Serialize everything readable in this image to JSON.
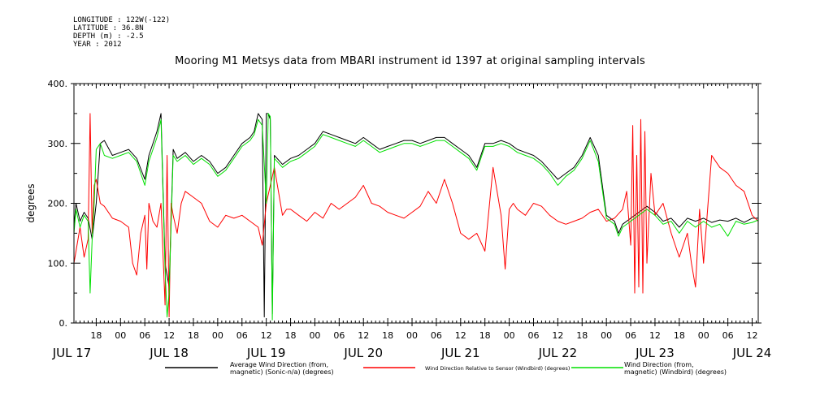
{
  "meta": {
    "longitude": "LONGITUDE : 122W(-122)",
    "latitude": "LATITUDE : 36.8N",
    "depth": "DEPTH (m) : -2.5",
    "year": "YEAR : 2012"
  },
  "chart_data": {
    "type": "line",
    "title": "Mooring M1 Metsys data from MBARI instrument id 1397 at original sampling intervals",
    "ylabel": "degrees",
    "xlabel": "",
    "ylim": [
      0,
      400
    ],
    "y_ticks": [
      0,
      100,
      200,
      300,
      400
    ],
    "y_tick_labels": [
      "0.",
      "100.",
      "200.",
      "300.",
      "400."
    ],
    "x_unit": "hours since JUL 17 00:00, 2012",
    "xlim": [
      12.5,
      181.5
    ],
    "hour_ticks": [
      18,
      24,
      30,
      36,
      42,
      48,
      54,
      60,
      66,
      72,
      78,
      84,
      90,
      96,
      102,
      108,
      114,
      120,
      126,
      132,
      138,
      144,
      150,
      156,
      162,
      168,
      174,
      180
    ],
    "hour_tick_labels": [
      "18",
      "00",
      "06",
      "12",
      "18",
      "00",
      "06",
      "12",
      "18",
      "00",
      "06",
      "12",
      "18",
      "00",
      "06",
      "12",
      "18",
      "00",
      "06",
      "12",
      "18",
      "00",
      "06",
      "12",
      "18",
      "00",
      "06",
      "12"
    ],
    "day_labels": [
      {
        "label": "JUL 17",
        "hour": 12
      },
      {
        "label": "JUL 18",
        "hour": 36
      },
      {
        "label": "JUL 19",
        "hour": 60
      },
      {
        "label": "JUL 20",
        "hour": 84
      },
      {
        "label": "JUL 21",
        "hour": 108
      },
      {
        "label": "JUL 22",
        "hour": 132
      },
      {
        "label": "JUL 23",
        "hour": 156
      },
      {
        "label": "JUL 24",
        "hour": 180
      }
    ],
    "legend_position": "bottom",
    "series": [
      {
        "name": "Average Wind Direction (from, magnetic) (Sonic-n/a) (degrees)",
        "name_lines": [
          "Average Wind Direction (from,",
          "magnetic) (Sonic-n/a) (degrees)"
        ],
        "color": "#000000",
        "x": [
          12.5,
          13,
          14,
          15,
          16,
          17,
          18,
          19,
          20,
          22,
          24,
          26,
          28,
          30,
          31,
          32,
          33,
          34,
          35,
          36,
          37,
          38,
          40,
          42,
          44,
          46,
          48,
          50,
          52,
          54,
          56,
          57,
          58,
          59,
          59.5,
          60,
          60.5,
          61,
          61.5,
          62,
          64,
          66,
          68,
          70,
          72,
          74,
          76,
          78,
          80,
          82,
          84,
          86,
          88,
          90,
          92,
          94,
          96,
          98,
          100,
          102,
          104,
          106,
          108,
          110,
          112,
          114,
          116,
          118,
          120,
          122,
          124,
          126,
          128,
          130,
          132,
          134,
          136,
          138,
          140,
          142,
          144,
          146,
          147,
          148,
          150,
          152,
          154,
          156,
          158,
          160,
          162,
          164,
          166,
          168,
          170,
          172,
          174,
          176,
          178,
          180,
          181.5
        ],
        "y": [
          160,
          200,
          170,
          185,
          175,
          140,
          200,
          300,
          305,
          280,
          285,
          290,
          275,
          240,
          280,
          300,
          320,
          350,
          100,
          60,
          290,
          275,
          285,
          270,
          280,
          270,
          250,
          260,
          280,
          300,
          310,
          320,
          350,
          340,
          10,
          350,
          350,
          340,
          15,
          280,
          265,
          275,
          280,
          290,
          300,
          320,
          315,
          310,
          305,
          300,
          310,
          300,
          290,
          295,
          300,
          305,
          305,
          300,
          305,
          310,
          310,
          300,
          290,
          280,
          260,
          300,
          300,
          305,
          300,
          290,
          285,
          280,
          270,
          255,
          240,
          250,
          260,
          280,
          310,
          280,
          180,
          170,
          150,
          165,
          175,
          185,
          195,
          185,
          170,
          175,
          160,
          175,
          170,
          175,
          168,
          172,
          170,
          175,
          168,
          175,
          175
        ]
      },
      {
        "name": "Wind Direction Relative to Sensor (Windbird) (degrees)",
        "name_lines": [
          "Wind Direction Relative to Sensor (Windbird) (degrees)"
        ],
        "color": "#ff0000",
        "x": [
          12.5,
          13,
          14,
          15,
          16,
          16.5,
          17,
          17.5,
          18,
          19,
          20,
          22,
          24,
          26,
          27,
          28,
          29,
          30,
          30.5,
          31,
          32,
          33,
          34,
          35,
          35.5,
          36,
          36.5,
          37,
          38,
          39,
          40,
          42,
          44,
          46,
          48,
          50,
          52,
          54,
          56,
          58,
          59,
          60,
          62,
          64,
          65,
          66,
          68,
          70,
          72,
          74,
          76,
          78,
          80,
          82,
          84,
          86,
          88,
          90,
          92,
          94,
          96,
          98,
          100,
          102,
          104,
          106,
          108,
          110,
          112,
          114,
          116,
          118,
          119,
          120,
          121,
          122,
          124,
          126,
          128,
          130,
          132,
          134,
          136,
          138,
          140,
          142,
          144,
          146,
          148,
          149,
          150,
          150.5,
          151,
          151.5,
          152,
          152.5,
          153,
          153.5,
          154,
          155,
          156,
          158,
          160,
          162,
          164,
          165,
          166,
          167,
          168,
          170,
          172,
          174,
          176,
          178,
          180,
          181.5
        ],
        "y": [
          100,
          120,
          160,
          110,
          140,
          350,
          150,
          230,
          240,
          200,
          195,
          175,
          170,
          160,
          100,
          80,
          150,
          180,
          90,
          200,
          170,
          160,
          200,
          30,
          280,
          10,
          200,
          180,
          150,
          200,
          220,
          210,
          200,
          170,
          160,
          180,
          175,
          180,
          170,
          160,
          130,
          200,
          260,
          180,
          190,
          190,
          180,
          170,
          185,
          175,
          200,
          190,
          200,
          210,
          230,
          200,
          195,
          185,
          180,
          175,
          185,
          195,
          220,
          200,
          240,
          200,
          150,
          140,
          150,
          120,
          260,
          180,
          90,
          190,
          200,
          190,
          180,
          200,
          195,
          180,
          170,
          165,
          170,
          175,
          185,
          190,
          170,
          175,
          190,
          220,
          130,
          330,
          50,
          280,
          60,
          340,
          50,
          320,
          100,
          250,
          180,
          200,
          150,
          110,
          150,
          100,
          60,
          190,
          100,
          280,
          260,
          250,
          230,
          220,
          180,
          170
        ]
      },
      {
        "name": "Wind Direction (from, magnetic) (Windbird) (degrees)",
        "name_lines": [
          "Wind Direction (from,",
          "magnetic) (Windbird) (degrees)"
        ],
        "color": "#00e000",
        "x": [
          12.5,
          13,
          14,
          15,
          16,
          16.5,
          17,
          17.5,
          18,
          19,
          20,
          22,
          24,
          26,
          28,
          30,
          31,
          32,
          33,
          34,
          35,
          35.5,
          36,
          37,
          38,
          40,
          42,
          44,
          46,
          48,
          50,
          52,
          54,
          56,
          57,
          58,
          59,
          60,
          60.5,
          61,
          61.5,
          62,
          64,
          66,
          68,
          70,
          72,
          74,
          76,
          78,
          80,
          82,
          84,
          86,
          88,
          90,
          92,
          94,
          96,
          98,
          100,
          102,
          104,
          106,
          108,
          110,
          112,
          114,
          116,
          118,
          120,
          122,
          124,
          126,
          128,
          130,
          132,
          134,
          136,
          138,
          140,
          142,
          144,
          146,
          147,
          148,
          150,
          152,
          154,
          156,
          158,
          160,
          162,
          164,
          166,
          168,
          170,
          172,
          174,
          176,
          178,
          180,
          181.5
        ],
        "y": [
          150,
          190,
          160,
          180,
          170,
          50,
          140,
          200,
          290,
          300,
          280,
          275,
          280,
          285,
          270,
          230,
          270,
          290,
          310,
          340,
          90,
          10,
          50,
          280,
          270,
          280,
          265,
          275,
          265,
          245,
          255,
          275,
          295,
          305,
          315,
          340,
          330,
          200,
          350,
          345,
          5,
          275,
          260,
          270,
          275,
          285,
          295,
          315,
          310,
          305,
          300,
          295,
          305,
          295,
          285,
          290,
          295,
          300,
          300,
          295,
          300,
          305,
          305,
          295,
          285,
          275,
          255,
          295,
          295,
          300,
          295,
          285,
          280,
          275,
          265,
          250,
          230,
          245,
          255,
          275,
          305,
          270,
          175,
          165,
          145,
          160,
          170,
          180,
          190,
          180,
          165,
          170,
          150,
          170,
          160,
          170,
          160,
          165,
          145,
          170,
          165,
          168,
          172
        ]
      }
    ]
  }
}
